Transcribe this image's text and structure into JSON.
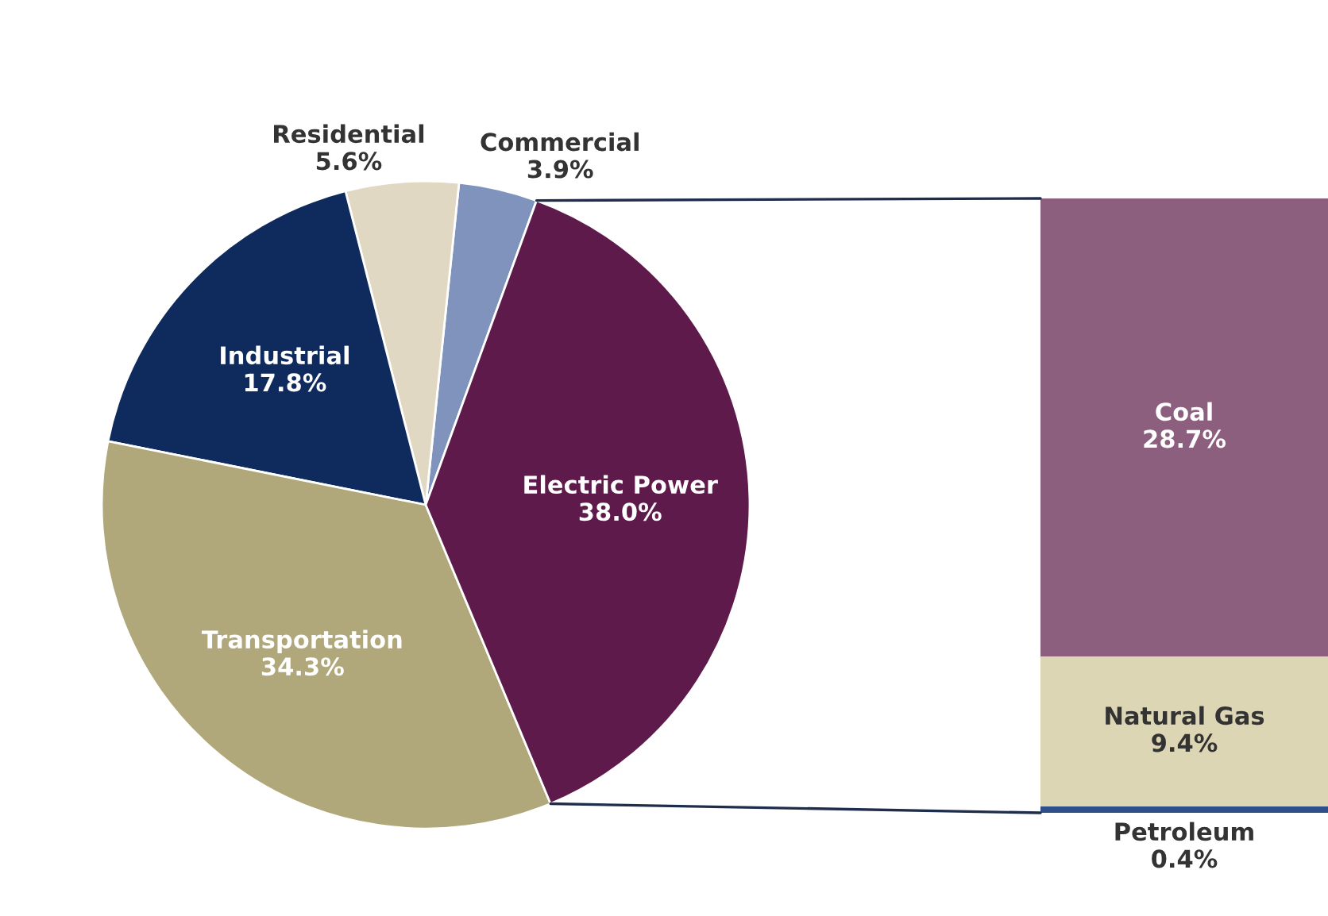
{
  "chart_data": [
    {
      "type": "pie",
      "categories": [
        "Commercial",
        "Residential",
        "Industrial",
        "Transportation",
        "Electric Power"
      ],
      "values": [
        3.9,
        5.6,
        17.8,
        34.3,
        38.0
      ],
      "value_labels": [
        "3.9%",
        "5.6%",
        "17.8%",
        "34.3%",
        "38.0%"
      ],
      "colors": [
        "#7f93bd",
        "#e0d8c3",
        "#0f2a5c",
        "#b0a77a",
        "#5e1a4b"
      ]
    },
    {
      "type": "bar",
      "stacked": true,
      "categories": [
        null
      ],
      "series": [
        {
          "name": "Petroleum",
          "color": "#2e4f8a",
          "values": [
            0.4
          ],
          "value_labels": [
            "0.4%"
          ]
        },
        {
          "name": "Natural Gas",
          "color": "#ddd6b5",
          "values": [
            9.4
          ],
          "value_labels": [
            "9.4%"
          ]
        },
        {
          "name": "Coal",
          "color": "#8c5f7e",
          "values": [
            28.7
          ],
          "value_labels": [
            "28.7%"
          ]
        }
      ]
    }
  ]
}
